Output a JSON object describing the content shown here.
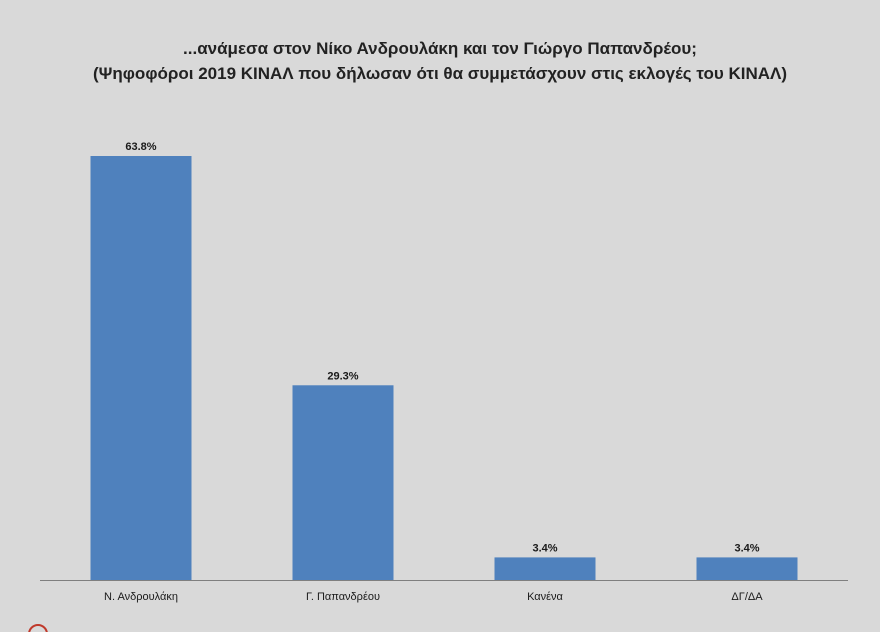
{
  "title_line1": "...ανάμεσα στον Νίκο Ανδρουλάκη και τον Γιώργο Παπανδρέου;",
  "title_line2": "(Ψηφοφόροι 2019 ΚΙΝΑΛ που δήλωσαν ότι θα συμμετάσχουν στις εκλογές του ΚΙΝΑΛ)",
  "colors": {
    "background": "#d9d9d9",
    "bar": "#4f81bd",
    "axis": "#7f7f7f"
  },
  "chart_data": {
    "type": "bar",
    "title": "...ανάμεσα στον Νίκο Ανδρουλάκη και τον Γιώργο Παπανδρέου;",
    "subtitle": "(Ψηφοφόροι 2019 ΚΙΝΑΛ που δήλωσαν ότι θα συμμετάσχουν στις εκλογές του ΚΙΝΑΛ)",
    "categories": [
      "Ν. Ανδρουλάκη",
      "Γ. Παπανδρέου",
      "Κανένα",
      "ΔΓ/ΔΑ"
    ],
    "values": [
      63.8,
      29.3,
      3.4,
      3.4
    ],
    "data_labels": [
      "63.8%",
      "29.3%",
      "3.4%",
      "3.4%"
    ],
    "xlabel": "",
    "ylabel": "",
    "ylim": [
      0,
      70
    ],
    "grid": false,
    "legend": "none"
  }
}
